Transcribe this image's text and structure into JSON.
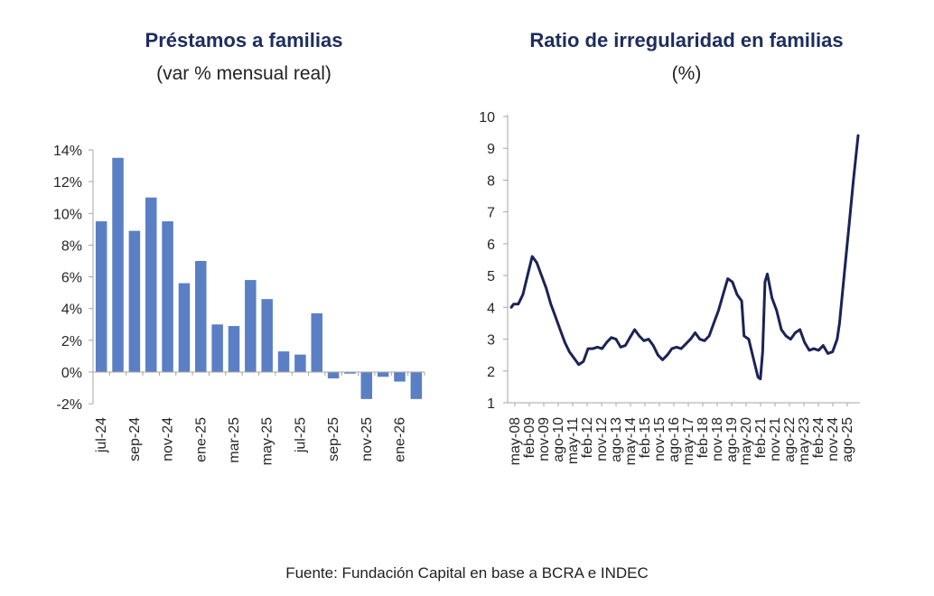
{
  "colors": {
    "bar": "#5b7fc4",
    "line": "#1b2356",
    "title": "#1d2d5c",
    "axis": "#a6a6a6"
  },
  "chart_data": [
    {
      "type": "bar",
      "title": "Préstamos a familias",
      "subtitle": "(var % mensual real)",
      "ytick_labels": [
        "14%",
        "12%",
        "10%",
        "8%",
        "6%",
        "4%",
        "2%",
        "0%",
        "-2%"
      ],
      "ytick_values": [
        14,
        12,
        10,
        8,
        6,
        4,
        2,
        0,
        -2
      ],
      "ylim": [
        -2,
        14
      ],
      "categories": [
        "jul-24",
        "ago-24",
        "sep-24",
        "oct-24",
        "nov-24",
        "dic-24",
        "ene-25",
        "feb-25",
        "mar-25",
        "abr-25",
        "may-25",
        "jun-25",
        "jul-25",
        "ago-25",
        "sep-25",
        "oct-25",
        "nov-25",
        "dic-25",
        "ene-26",
        "feb-26"
      ],
      "xtick_labels": [
        "jul-24",
        "sep-24",
        "nov-24",
        "ene-25",
        "mar-25",
        "may-25",
        "jul-25",
        "sep-25",
        "nov-25",
        "ene-26"
      ],
      "values": [
        9.5,
        13.5,
        8.9,
        11.0,
        9.5,
        5.6,
        7.0,
        3.0,
        2.9,
        5.8,
        4.6,
        1.3,
        1.1,
        3.7,
        -0.4,
        -0.1,
        -1.7,
        -0.3,
        -0.6,
        -1.7
      ]
    },
    {
      "type": "line",
      "title": "Ratio de irregularidad en familias",
      "subtitle": "(%)",
      "ytick_labels": [
        "10",
        "9",
        "8",
        "7",
        "6",
        "5",
        "4",
        "3",
        "2",
        "1"
      ],
      "ytick_values": [
        10,
        9,
        8,
        7,
        6,
        5,
        4,
        3,
        2,
        1
      ],
      "ylim": [
        1,
        10
      ],
      "x_start": "may-08",
      "x_end": "feb-26",
      "xtick_labels": [
        "may-08",
        "feb-09",
        "nov-09",
        "ago-10",
        "may-11",
        "feb-12",
        "nov-12",
        "ago-13",
        "may-14",
        "feb-15",
        "nov-15",
        "ago-16",
        "may-17",
        "feb-18",
        "nov-18",
        "ago-19",
        "may-20",
        "feb-21",
        "nov-21",
        "ago-22",
        "may-23",
        "feb-24",
        "nov-24",
        "ago-25"
      ],
      "points": [
        [
          0,
          4.0
        ],
        [
          1,
          4.1
        ],
        [
          3,
          4.1
        ],
        [
          5,
          4.4
        ],
        [
          7,
          5.0
        ],
        [
          9,
          5.6
        ],
        [
          11,
          5.4
        ],
        [
          13,
          5.0
        ],
        [
          15,
          4.6
        ],
        [
          17,
          4.1
        ],
        [
          19,
          3.7
        ],
        [
          21,
          3.3
        ],
        [
          23,
          2.9
        ],
        [
          25,
          2.6
        ],
        [
          27,
          2.4
        ],
        [
          29,
          2.2
        ],
        [
          31,
          2.3
        ],
        [
          33,
          2.7
        ],
        [
          35,
          2.7
        ],
        [
          37,
          2.75
        ],
        [
          39,
          2.7
        ],
        [
          41,
          2.9
        ],
        [
          43,
          3.05
        ],
        [
          45,
          3.0
        ],
        [
          47,
          2.75
        ],
        [
          49,
          2.8
        ],
        [
          51,
          3.05
        ],
        [
          53,
          3.3
        ],
        [
          55,
          3.1
        ],
        [
          57,
          2.95
        ],
        [
          59,
          3.0
        ],
        [
          61,
          2.8
        ],
        [
          63,
          2.5
        ],
        [
          65,
          2.35
        ],
        [
          67,
          2.5
        ],
        [
          69,
          2.7
        ],
        [
          71,
          2.75
        ],
        [
          73,
          2.7
        ],
        [
          75,
          2.85
        ],
        [
          77,
          3.0
        ],
        [
          79,
          3.2
        ],
        [
          81,
          3.0
        ],
        [
          83,
          2.95
        ],
        [
          85,
          3.1
        ],
        [
          87,
          3.5
        ],
        [
          89,
          3.9
        ],
        [
          91,
          4.4
        ],
        [
          93,
          4.9
        ],
        [
          95,
          4.8
        ],
        [
          97,
          4.4
        ],
        [
          99,
          4.2
        ],
        [
          100,
          3.1
        ],
        [
          102,
          3.0
        ],
        [
          104,
          2.4
        ],
        [
          106,
          1.8
        ],
        [
          107,
          1.75
        ],
        [
          108,
          2.6
        ],
        [
          109,
          4.8
        ],
        [
          110,
          5.05
        ],
        [
          112,
          4.3
        ],
        [
          114,
          3.9
        ],
        [
          116,
          3.3
        ],
        [
          118,
          3.1
        ],
        [
          120,
          3.0
        ],
        [
          122,
          3.2
        ],
        [
          124,
          3.3
        ],
        [
          126,
          2.9
        ],
        [
          128,
          2.65
        ],
        [
          130,
          2.7
        ],
        [
          132,
          2.65
        ],
        [
          134,
          2.8
        ],
        [
          136,
          2.55
        ],
        [
          138,
          2.6
        ],
        [
          140,
          3.0
        ],
        [
          141,
          3.5
        ],
        [
          143,
          5.0
        ],
        [
          145,
          6.5
        ],
        [
          147,
          8.0
        ],
        [
          149,
          9.4
        ]
      ]
    }
  ],
  "source_text": "Fuente: Fundación Capital en base a BCRA e INDEC"
}
